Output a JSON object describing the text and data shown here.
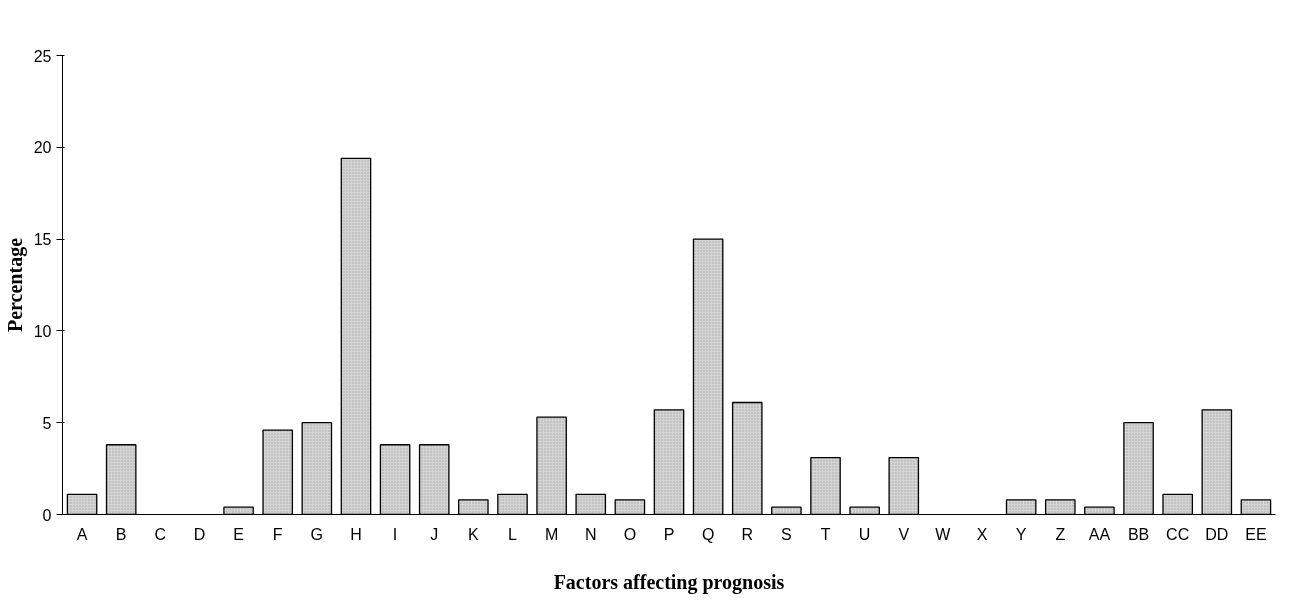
{
  "chart_data": {
    "type": "bar",
    "xlabel": "Factors affecting prognosis",
    "ylabel": "Percentage",
    "categories": [
      "A",
      "B",
      "C",
      "D",
      "E",
      "F",
      "G",
      "H",
      "I",
      "J",
      "K",
      "L",
      "M",
      "N",
      "O",
      "P",
      "Q",
      "R",
      "S",
      "T",
      "U",
      "V",
      "W",
      "X",
      "Y",
      "Z",
      "AA",
      "BB",
      "CC",
      "DD",
      "EE"
    ],
    "values": [
      1.1,
      3.8,
      0,
      0,
      0.4,
      4.6,
      5.0,
      19.4,
      3.8,
      3.8,
      0.8,
      1.1,
      5.3,
      1.1,
      0.8,
      5.7,
      15.0,
      6.1,
      0.4,
      3.1,
      0.4,
      3.1,
      0,
      0,
      0.8,
      0.8,
      0.4,
      5.0,
      1.1,
      5.7,
      0.8
    ],
    "color": "#d4d4d4",
    "ylim": [
      0,
      25
    ],
    "yticks": [
      0,
      5,
      10,
      15,
      20,
      25
    ],
    "grid": false
  }
}
